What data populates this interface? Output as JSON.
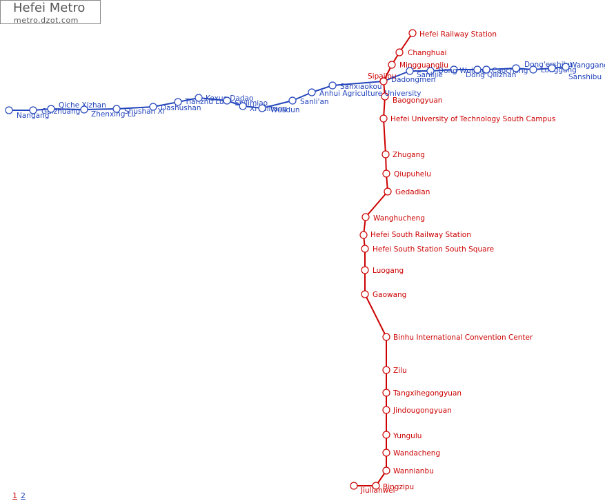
{
  "header": {
    "title": "Hefei Metro",
    "subtitle": "metro.dzot.com"
  },
  "lines": [
    {
      "color": "#cc0000",
      "stations": [
        "Hefei Railway Station",
        "Changhuai",
        "Mingguangliu",
        "Sipailou",
        "Baogongyuan",
        "Hefei University of Technology South Campus",
        "Zhugang",
        "Qiupuhelu",
        "Gedadian",
        "Wanghucheng",
        "Hefei South Railway Station",
        "Hefei South Station South Square",
        "Luogang",
        "Gaowang",
        "Binhu International Convention Center",
        "Zilu",
        "Tangxihegongyuan",
        "Jindougongyuan",
        "Yungulu",
        "Wandacheng",
        "Wannianbu",
        "Bingzipu",
        "Jiulianwei"
      ]
    },
    {
      "color": "#2244bb",
      "stations": [
        "Nangang",
        "Guizhuang",
        "Qiche Xizhan",
        "Zhenxing Lu",
        "Shushan Xi",
        "Dashushan",
        "Tianzhu Lu",
        "Kexue Dadao",
        "Shilimiao",
        "Xi Qilitang",
        "Wulidun",
        "Sanli'an",
        "Anhui Agriculture University",
        "Sanxiaokou",
        "Dadongmen",
        "Sanlijie",
        "Dong Wuliing",
        "Dong Qilizhan",
        "Caochong",
        "Dong'ershibu",
        "Longgang",
        "Sanshibu",
        "Wanggang"
      ]
    }
  ],
  "pages": [
    "1",
    "2"
  ]
}
